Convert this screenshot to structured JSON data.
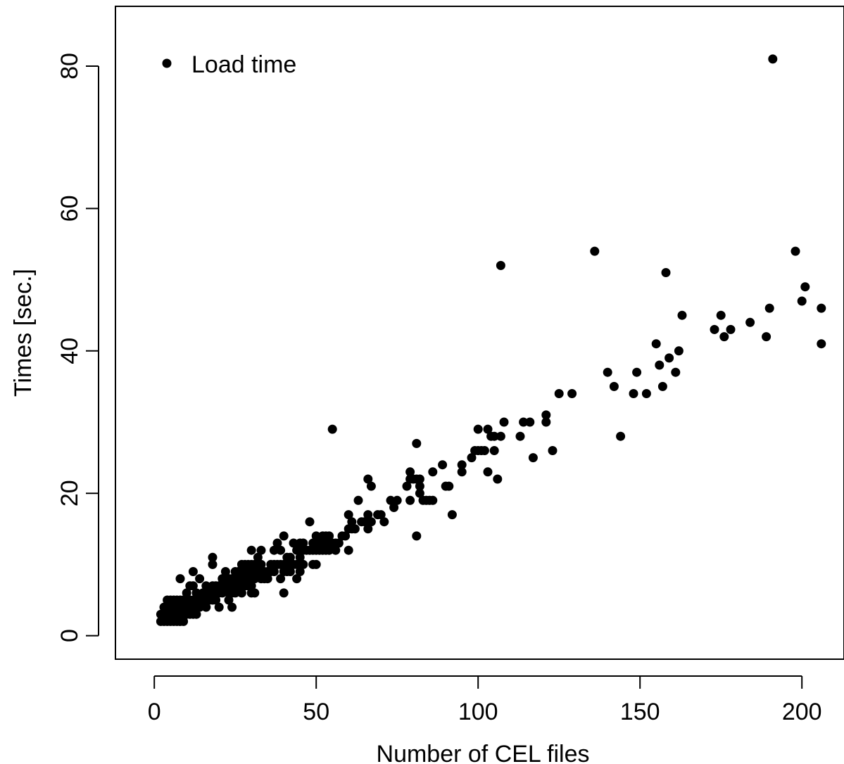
{
  "chart_data": {
    "type": "scatter",
    "xlabel": "Number of CEL files",
    "ylabel": "Times [sec.]",
    "xlim": [
      -12,
      213
    ],
    "ylim": [
      -3.3,
      88.4
    ],
    "x_ticks": [
      0,
      50,
      100,
      150,
      200
    ],
    "y_ticks": [
      0,
      20,
      40,
      60,
      80
    ],
    "grid": false,
    "legend": {
      "position": "top-left",
      "entries": [
        "Load time"
      ]
    },
    "marker_color": "#000000",
    "series": [
      {
        "name": "Load time",
        "points": [
          [
            2,
            2
          ],
          [
            2,
            3
          ],
          [
            3,
            2
          ],
          [
            3,
            3
          ],
          [
            3,
            4
          ],
          [
            4,
            2
          ],
          [
            4,
            3
          ],
          [
            4,
            4
          ],
          [
            4,
            5
          ],
          [
            5,
            2
          ],
          [
            5,
            3
          ],
          [
            5,
            4
          ],
          [
            5,
            5
          ],
          [
            6,
            2
          ],
          [
            6,
            3
          ],
          [
            6,
            4
          ],
          [
            6,
            5
          ],
          [
            7,
            2
          ],
          [
            7,
            3
          ],
          [
            7,
            4
          ],
          [
            7,
            5
          ],
          [
            8,
            2
          ],
          [
            8,
            3
          ],
          [
            8,
            4
          ],
          [
            8,
            5
          ],
          [
            8,
            8
          ],
          [
            9,
            2
          ],
          [
            9,
            3
          ],
          [
            9,
            4
          ],
          [
            9,
            5
          ],
          [
            10,
            3
          ],
          [
            10,
            4
          ],
          [
            10,
            5
          ],
          [
            10,
            6
          ],
          [
            11,
            3
          ],
          [
            11,
            4
          ],
          [
            11,
            5
          ],
          [
            11,
            7
          ],
          [
            12,
            3
          ],
          [
            12,
            4
          ],
          [
            12,
            5
          ],
          [
            12,
            7
          ],
          [
            12,
            9
          ],
          [
            13,
            3
          ],
          [
            13,
            5
          ],
          [
            13,
            6
          ],
          [
            14,
            4
          ],
          [
            14,
            5
          ],
          [
            14,
            8
          ],
          [
            15,
            5
          ],
          [
            15,
            6
          ],
          [
            16,
            4
          ],
          [
            16,
            5
          ],
          [
            16,
            6
          ],
          [
            16,
            7
          ],
          [
            17,
            5
          ],
          [
            17,
            6
          ],
          [
            18,
            5
          ],
          [
            18,
            6
          ],
          [
            18,
            7
          ],
          [
            18,
            10
          ],
          [
            18,
            11
          ],
          [
            19,
            5
          ],
          [
            19,
            6
          ],
          [
            19,
            7
          ],
          [
            20,
            4
          ],
          [
            20,
            6
          ],
          [
            20,
            7
          ],
          [
            21,
            6
          ],
          [
            21,
            8
          ],
          [
            22,
            7
          ],
          [
            22,
            9
          ],
          [
            23,
            5
          ],
          [
            23,
            6
          ],
          [
            23,
            8
          ],
          [
            24,
            4
          ],
          [
            24,
            6
          ],
          [
            24,
            7
          ],
          [
            24,
            8
          ],
          [
            25,
            6
          ],
          [
            25,
            7
          ],
          [
            25,
            8
          ],
          [
            25,
            9
          ],
          [
            26,
            7
          ],
          [
            26,
            8
          ],
          [
            26,
            9
          ],
          [
            27,
            6
          ],
          [
            27,
            8
          ],
          [
            27,
            9
          ],
          [
            27,
            10
          ],
          [
            28,
            7
          ],
          [
            28,
            8
          ],
          [
            28,
            9
          ],
          [
            28,
            10
          ],
          [
            29,
            7
          ],
          [
            29,
            8
          ],
          [
            29,
            9
          ],
          [
            29,
            10
          ],
          [
            30,
            6
          ],
          [
            30,
            7
          ],
          [
            30,
            8
          ],
          [
            30,
            9
          ],
          [
            30,
            10
          ],
          [
            30,
            12
          ],
          [
            31,
            6
          ],
          [
            31,
            8
          ],
          [
            31,
            9
          ],
          [
            31,
            10
          ],
          [
            32,
            9
          ],
          [
            32,
            11
          ],
          [
            33,
            8
          ],
          [
            33,
            9
          ],
          [
            33,
            10
          ],
          [
            33,
            12
          ],
          [
            34,
            8
          ],
          [
            34,
            9
          ],
          [
            35,
            8
          ],
          [
            35,
            9
          ],
          [
            36,
            9
          ],
          [
            36,
            10
          ],
          [
            37,
            9
          ],
          [
            37,
            10
          ],
          [
            37,
            12
          ],
          [
            38,
            10
          ],
          [
            38,
            13
          ],
          [
            39,
            8
          ],
          [
            39,
            10
          ],
          [
            39,
            12
          ],
          [
            40,
            6
          ],
          [
            40,
            9
          ],
          [
            40,
            10
          ],
          [
            40,
            14
          ],
          [
            41,
            9
          ],
          [
            41,
            11
          ],
          [
            42,
            9
          ],
          [
            42,
            10
          ],
          [
            42,
            11
          ],
          [
            43,
            10
          ],
          [
            43,
            13
          ],
          [
            44,
            8
          ],
          [
            44,
            10
          ],
          [
            44,
            12
          ],
          [
            45,
            9
          ],
          [
            45,
            11
          ],
          [
            45,
            13
          ],
          [
            46,
            10
          ],
          [
            46,
            12
          ],
          [
            46,
            13
          ],
          [
            47,
            12
          ],
          [
            48,
            12
          ],
          [
            48,
            16
          ],
          [
            49,
            10
          ],
          [
            49,
            12
          ],
          [
            49,
            13
          ],
          [
            50,
            10
          ],
          [
            50,
            12
          ],
          [
            50,
            14
          ],
          [
            51,
            12
          ],
          [
            51,
            13
          ],
          [
            52,
            12
          ],
          [
            52,
            14
          ],
          [
            53,
            12
          ],
          [
            53,
            13
          ],
          [
            53,
            14
          ],
          [
            54,
            12
          ],
          [
            54,
            13
          ],
          [
            54,
            14
          ],
          [
            55,
            13
          ],
          [
            55,
            29
          ],
          [
            56,
            12
          ],
          [
            56,
            13
          ],
          [
            57,
            13
          ],
          [
            58,
            14
          ],
          [
            59,
            14
          ],
          [
            60,
            12
          ],
          [
            60,
            15
          ],
          [
            60,
            17
          ],
          [
            61,
            15
          ],
          [
            61,
            16
          ],
          [
            62,
            15
          ],
          [
            63,
            19
          ],
          [
            64,
            16
          ],
          [
            65,
            16
          ],
          [
            66,
            15
          ],
          [
            66,
            17
          ],
          [
            66,
            22
          ],
          [
            67,
            16
          ],
          [
            67,
            21
          ],
          [
            69,
            17
          ],
          [
            70,
            17
          ],
          [
            71,
            16
          ],
          [
            73,
            19
          ],
          [
            74,
            18
          ],
          [
            75,
            19
          ],
          [
            78,
            21
          ],
          [
            79,
            19
          ],
          [
            79,
            22
          ],
          [
            79,
            23
          ],
          [
            80,
            22
          ],
          [
            81,
            14
          ],
          [
            81,
            22
          ],
          [
            81,
            27
          ],
          [
            82,
            20
          ],
          [
            82,
            21
          ],
          [
            82,
            22
          ],
          [
            83,
            19
          ],
          [
            84,
            19
          ],
          [
            85,
            19
          ],
          [
            86,
            19
          ],
          [
            86,
            23
          ],
          [
            89,
            24
          ],
          [
            90,
            21
          ],
          [
            91,
            21
          ],
          [
            92,
            17
          ],
          [
            95,
            23
          ],
          [
            95,
            24
          ],
          [
            98,
            25
          ],
          [
            99,
            26
          ],
          [
            100,
            26
          ],
          [
            100,
            29
          ],
          [
            101,
            26
          ],
          [
            102,
            26
          ],
          [
            103,
            23
          ],
          [
            103,
            29
          ],
          [
            104,
            28
          ],
          [
            105,
            26
          ],
          [
            105,
            28
          ],
          [
            106,
            22
          ],
          [
            107,
            28
          ],
          [
            107,
            52
          ],
          [
            108,
            30
          ],
          [
            113,
            28
          ],
          [
            114,
            30
          ],
          [
            116,
            30
          ],
          [
            117,
            25
          ],
          [
            121,
            30
          ],
          [
            121,
            31
          ],
          [
            123,
            26
          ],
          [
            125,
            34
          ],
          [
            129,
            34
          ],
          [
            136,
            54
          ],
          [
            140,
            37
          ],
          [
            142,
            35
          ],
          [
            144,
            28
          ],
          [
            148,
            34
          ],
          [
            149,
            37
          ],
          [
            152,
            34
          ],
          [
            155,
            41
          ],
          [
            156,
            38
          ],
          [
            157,
            35
          ],
          [
            158,
            51
          ],
          [
            159,
            39
          ],
          [
            161,
            37
          ],
          [
            162,
            40
          ],
          [
            163,
            45
          ],
          [
            173,
            43
          ],
          [
            175,
            45
          ],
          [
            176,
            42
          ],
          [
            178,
            43
          ],
          [
            184,
            44
          ],
          [
            189,
            42
          ],
          [
            190,
            46
          ],
          [
            191,
            81
          ],
          [
            198,
            54
          ],
          [
            200,
            47
          ],
          [
            201,
            49
          ],
          [
            206,
            41
          ],
          [
            206,
            46
          ]
        ]
      }
    ]
  }
}
